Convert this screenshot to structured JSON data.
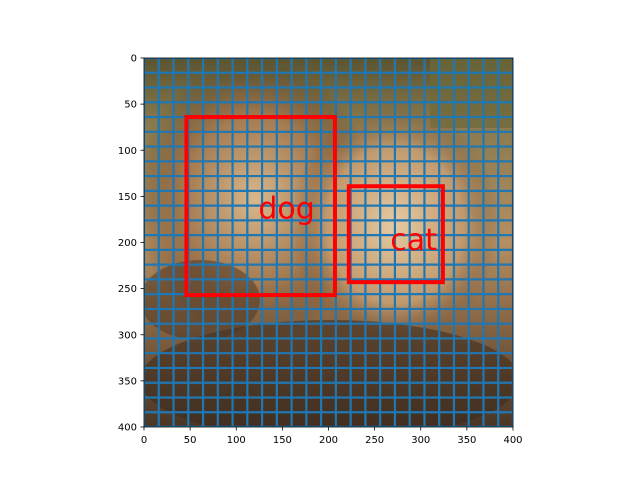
{
  "chart_data": {
    "type": "image",
    "title": "",
    "xlabel": "",
    "ylabel": "",
    "xlim": [
      0,
      400
    ],
    "ylim": [
      400,
      0
    ],
    "xticks": [
      0,
      50,
      100,
      150,
      200,
      250,
      300,
      350,
      400
    ],
    "yticks": [
      0,
      50,
      100,
      150,
      200,
      250,
      300,
      350,
      400
    ],
    "xtick_labels": [
      "0",
      "50",
      "100",
      "150",
      "200",
      "250",
      "300",
      "350",
      "400"
    ],
    "ytick_labels": [
      "0",
      "50",
      "100",
      "150",
      "200",
      "250",
      "300",
      "350",
      "400"
    ],
    "grid": {
      "on": true,
      "spacing": 16,
      "color": "#1f77b4"
    },
    "boxes": [
      {
        "label": "dog",
        "x0": 46,
        "y0": 64,
        "x1": 207,
        "y1": 257,
        "color": "#ff0000",
        "label_x": 124,
        "label_y": 146
      },
      {
        "label": "cat",
        "x0": 222,
        "y0": 139,
        "x1": 324,
        "y1": 243,
        "color": "#ff0000",
        "label_x": 267,
        "label_y": 180
      }
    ]
  }
}
